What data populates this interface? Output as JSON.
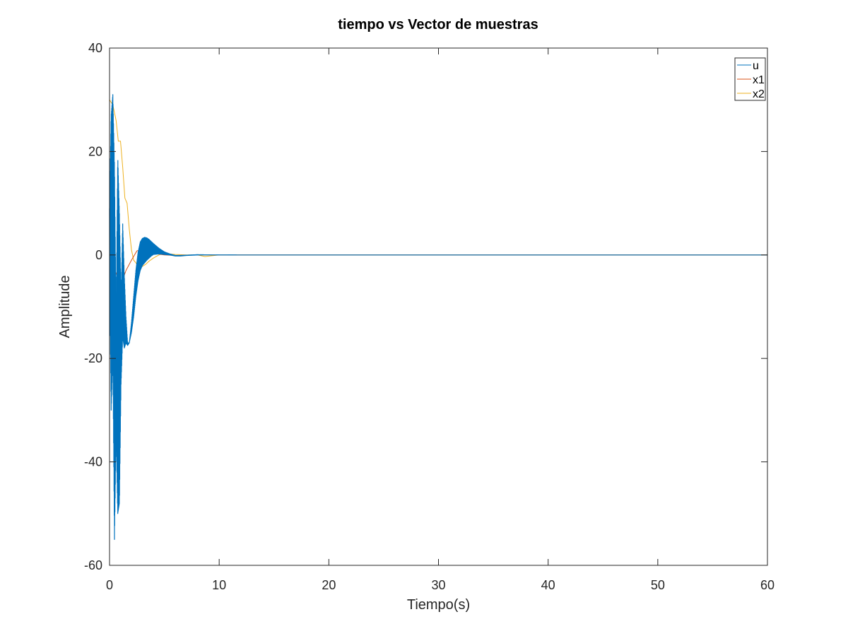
{
  "chart_data": {
    "type": "line",
    "title": "tiempo vs Vector de muestras",
    "xlabel": "Tiempo(s)",
    "ylabel": "Amplitude",
    "xlim": [
      0,
      60
    ],
    "ylim": [
      -60,
      40
    ],
    "xticks": [
      0,
      10,
      20,
      30,
      40,
      50,
      60
    ],
    "yticks": [
      -60,
      -40,
      -20,
      0,
      20,
      40
    ],
    "grid": false,
    "box": true,
    "legend_position": "top-right",
    "series": [
      {
        "name": "u",
        "color": "#0072bd",
        "style": "dense-oscillation",
        "x": [
          0,
          0.15,
          0.3,
          0.45,
          0.6,
          0.75,
          0.9,
          1.05,
          1.2,
          1.35,
          1.5,
          1.65,
          1.8,
          2.0,
          2.2,
          2.4,
          2.6,
          2.8,
          3.0,
          3.2,
          3.4,
          3.6,
          3.8,
          4.0,
          4.5,
          5.0,
          5.5,
          6.0,
          6.5,
          7.0,
          8.0,
          9.0,
          10.0,
          12.0,
          60.0
        ],
        "upper": [
          9,
          27,
          31,
          17,
          -12,
          19,
          8,
          -8,
          6,
          -4,
          -12,
          -17,
          -17,
          -13,
          -8,
          -3,
          0.5,
          2.5,
          3.2,
          3.4,
          3.3,
          3.0,
          2.6,
          2.2,
          1.3,
          0.6,
          0.2,
          -0.1,
          -0.1,
          -0.05,
          0.05,
          0.02,
          0.01,
          0,
          0
        ],
        "lower": [
          -3,
          -30,
          -20,
          -55,
          -35,
          -50,
          -48,
          -25,
          -16,
          -18,
          -17,
          -17.5,
          -17,
          -15,
          -12,
          -8,
          -5,
          -3,
          -2,
          -1.5,
          -1.0,
          -0.6,
          -0.2,
          0.1,
          0.2,
          0.1,
          0.0,
          -0.2,
          -0.2,
          -0.1,
          0.0,
          0.0,
          0.0,
          0,
          0
        ]
      },
      {
        "name": "x1",
        "color": "#d95319",
        "style": "line",
        "x": [
          0,
          0.5,
          1.0,
          1.5,
          2.0,
          2.5,
          3.0,
          3.5,
          4.0,
          5.0,
          6.0,
          7.0,
          8.0,
          10.0,
          60.0
        ],
        "y": [
          0,
          -3,
          -6,
          -3,
          -1,
          0.8,
          1.0,
          0.6,
          0.3,
          0.0,
          -0.1,
          -0.05,
          0.0,
          0.0,
          0.0
        ]
      },
      {
        "name": "x2",
        "color": "#edb120",
        "style": "line",
        "x": [
          0,
          0.3,
          0.6,
          0.8,
          1.0,
          1.2,
          1.4,
          1.6,
          1.8,
          2.0,
          2.2,
          2.4,
          2.6,
          2.8,
          3.0,
          3.3,
          3.6,
          4.0,
          4.5,
          5.0,
          5.5,
          6.0,
          7.0,
          8.0,
          8.7,
          10.0,
          60.0
        ],
        "y": [
          30,
          29,
          26,
          22,
          22,
          17,
          11,
          10,
          5,
          1,
          -1,
          -1.5,
          -2.3,
          -2.5,
          -2.2,
          -1.8,
          -1.2,
          -0.6,
          0.0,
          0.3,
          0.2,
          0.1,
          0.0,
          0.0,
          -0.3,
          0.0,
          0.0
        ]
      }
    ]
  }
}
